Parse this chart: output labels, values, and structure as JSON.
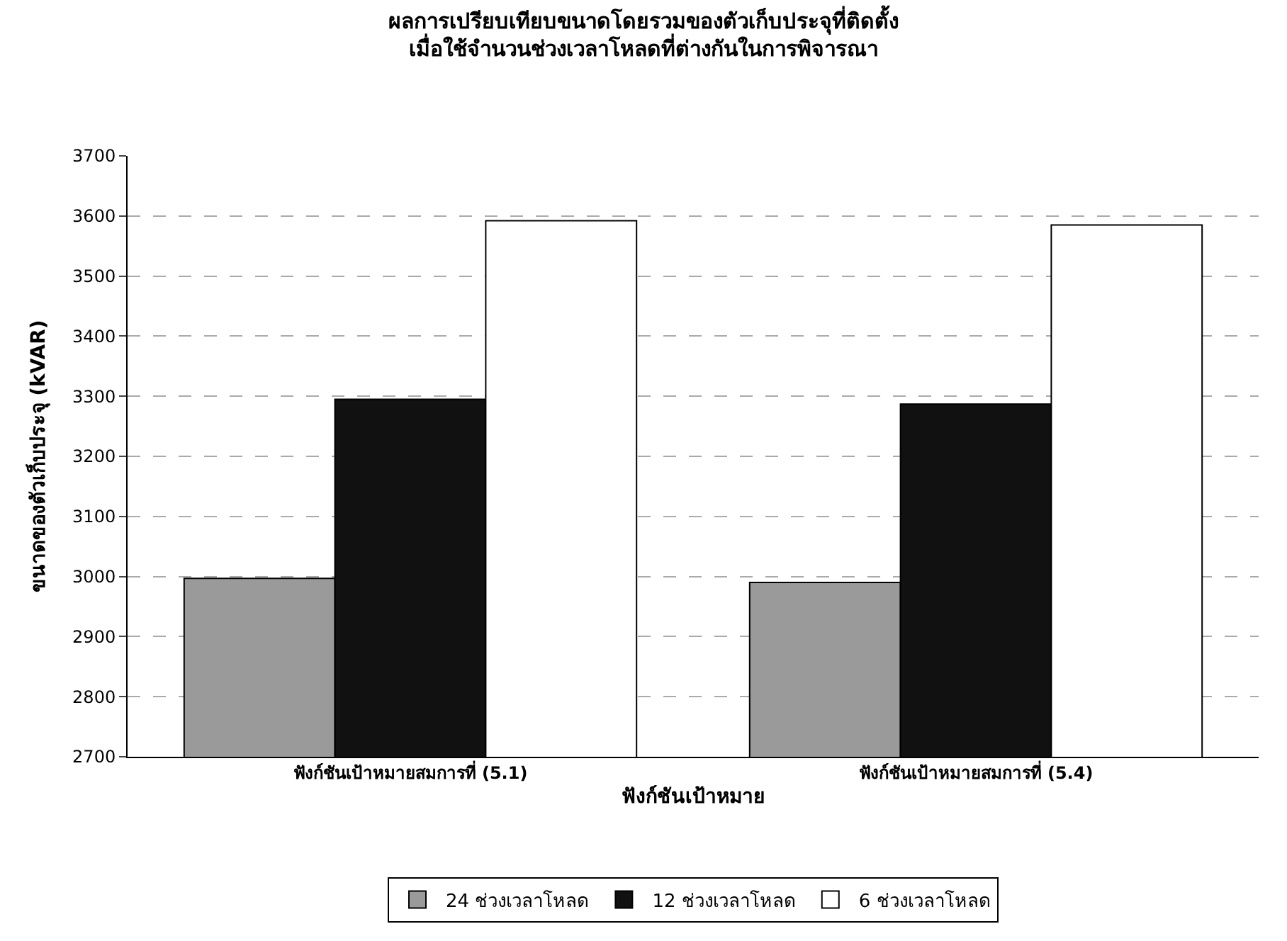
{
  "chart_data": {
    "type": "bar",
    "title": "ผลการเปรียบเทียบขนาดโดยรวมของตัวเก็บประจุที่ติดตั้ง\nเมื่อใช้จำนวนช่วงเวลาโหลดที่ต่างกันในการพิจารณา",
    "xlabel": "ฟังก์ชันเป้าหมาย",
    "ylabel": "ขนาดของตัวเก็บประจุ (kVAR)",
    "categories": [
      "ฟังก์ชันเป้าหมายสมการที่ (5.1)",
      "ฟังก์ชันเป้าหมายสมการที่ (5.4)"
    ],
    "series": [
      {
        "name": "24 ช่วงเวลาโหลด",
        "color": "#9a9a9a",
        "values": [
          2997,
          2990
        ]
      },
      {
        "name": "12 ช่วงเวลาโหลด",
        "color": "#111111",
        "values": [
          3295,
          3287
        ]
      },
      {
        "name": "6 ช่วงเวลาโหลด",
        "color": "#ffffff",
        "values": [
          3592,
          3585
        ]
      }
    ],
    "ylim": [
      2700,
      3700
    ],
    "yticks": [
      2700,
      2800,
      2900,
      3000,
      3100,
      3200,
      3300,
      3400,
      3500,
      3600,
      3700
    ],
    "grid": "y",
    "legend": "bottom"
  }
}
